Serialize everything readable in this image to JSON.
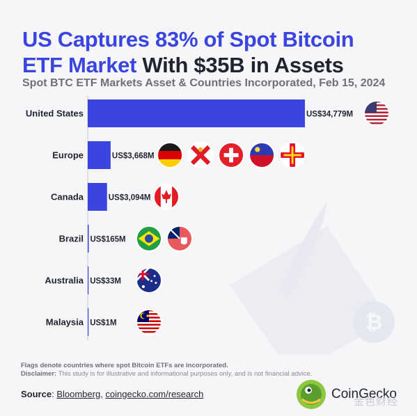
{
  "title": {
    "part1": "US Captures 83% of Spot Bitcoin",
    "part2": "ETF Market",
    "part3": " With $35B in Assets"
  },
  "subtitle": "Spot BTC ETF Markets Asset & Countries Incorporated, Feb 15, 2024",
  "chart_data": {
    "type": "bar",
    "orientation": "horizontal",
    "categories": [
      "United States",
      "Europe",
      "Canada",
      "Brazil",
      "Australia",
      "Malaysia"
    ],
    "values": [
      34779,
      3668,
      3094,
      165,
      33,
      1
    ],
    "value_labels": [
      "US$34,779M",
      "US$3,668M",
      "US$3,094M",
      "US$165M",
      "US$33M",
      "US$1M"
    ],
    "unit": "US$ million",
    "bar_color": "#3a45e0",
    "grid": false,
    "legend": "none",
    "flags": [
      [
        "us-flag"
      ],
      [
        "germany-flag",
        "jersey-flag",
        "switzerland-flag",
        "liechtenstein-flag",
        "guernsey-flag"
      ],
      [
        "canada-flag"
      ],
      [
        "brazil-flag",
        "bermuda-flag"
      ],
      [
        "australia-flag"
      ],
      [
        "malaysia-flag"
      ]
    ]
  },
  "footer": {
    "flags_note": "Flags denote countries where spot Bitcoin ETFs are incorporated.",
    "disclaimer_label": "Disclaimer:",
    "disclaimer_text": " This study is for illustrative and informational purposes only, and is not financial advice.",
    "source_label": "Source",
    "source_sep": ": ",
    "source_link1": "Bloomberg",
    "source_comma": ", ",
    "source_link2": "coingecko.com/research"
  },
  "logo": {
    "name": "CoinGecko"
  },
  "watermark": "金色财经",
  "colors": {
    "accent": "#3a45e0",
    "text": "#1f2430",
    "muted": "#6f7076",
    "background": "#f6f6f8"
  }
}
